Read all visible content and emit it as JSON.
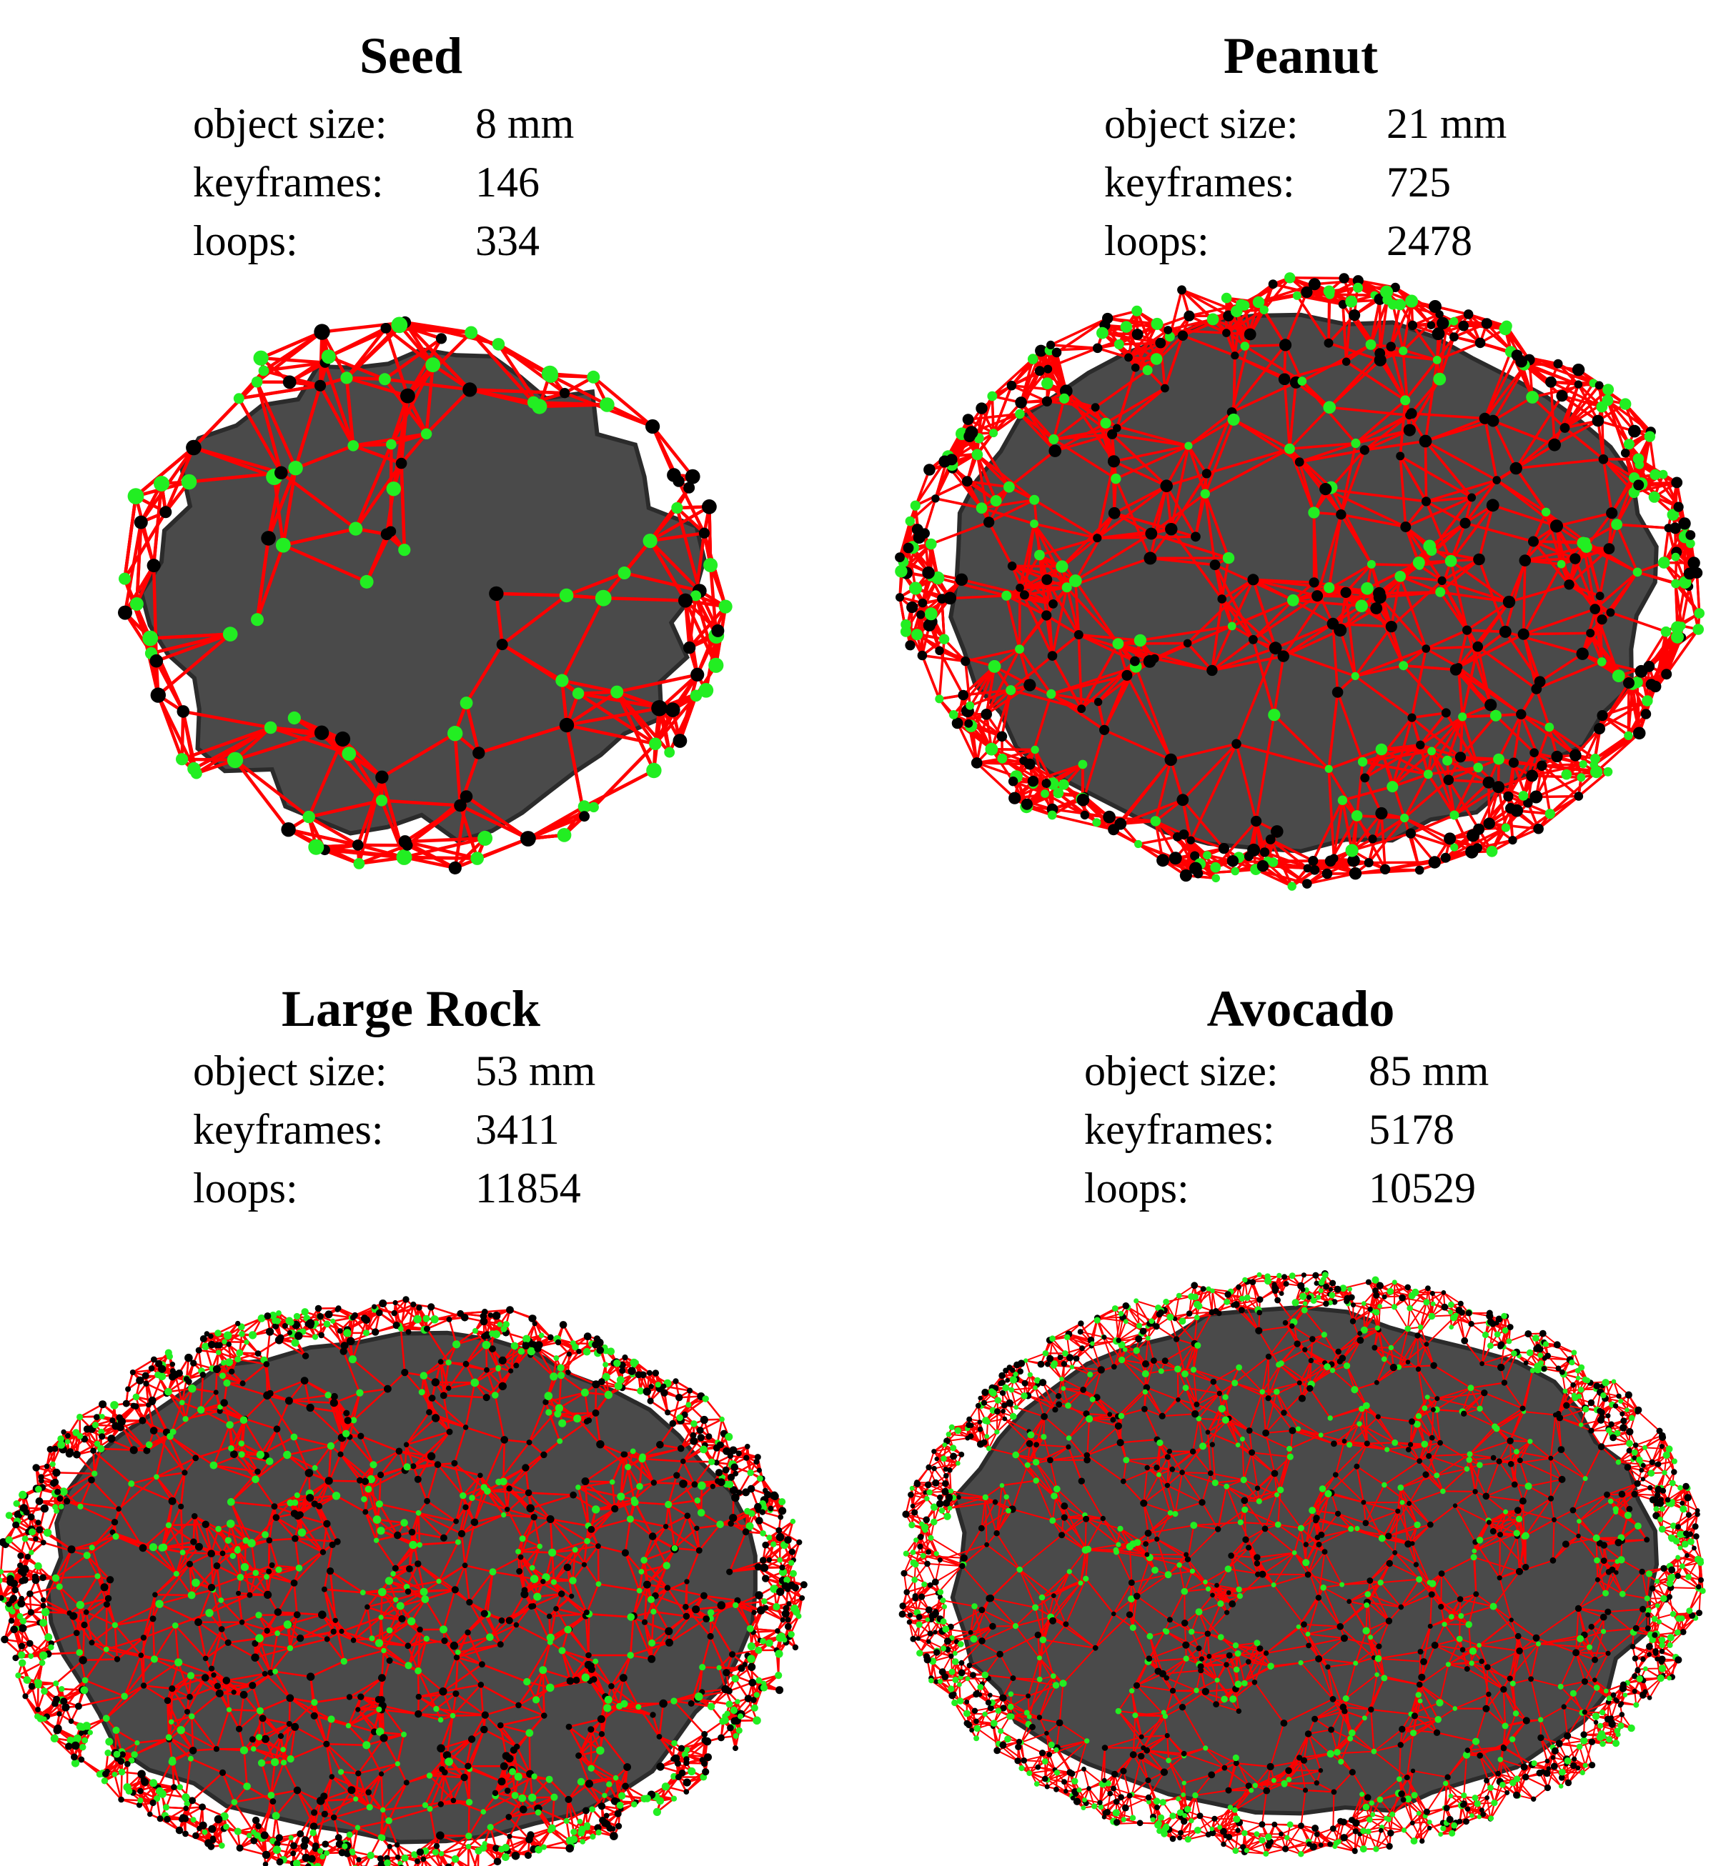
{
  "colors": {
    "object_surface": "#4a4a4a",
    "object_shadow": "#2b2b2b",
    "loop_edge": "#ff0000",
    "keyframe_node_green": "#22ee22",
    "keyframe_node_black": "#000000"
  },
  "panels": [
    {
      "id": "seed",
      "title": "Seed",
      "stats": [
        {
          "label": "object size:",
          "value": "8 mm"
        },
        {
          "label": "keyframes:",
          "value": "146"
        },
        {
          "label": "loops:",
          "value": "334"
        }
      ]
    },
    {
      "id": "peanut",
      "title": "Peanut",
      "stats": [
        {
          "label": "object size:",
          "value": "21 mm"
        },
        {
          "label": "keyframes:",
          "value": "725"
        },
        {
          "label": "loops:",
          "value": "2478"
        }
      ]
    },
    {
      "id": "large-rock",
      "title": "Large Rock",
      "stats": [
        {
          "label": "object size:",
          "value": "53 mm"
        },
        {
          "label": "keyframes:",
          "value": "3411"
        },
        {
          "label": "loops:",
          "value": "11854"
        }
      ]
    },
    {
      "id": "avocado",
      "title": "Avocado",
      "stats": [
        {
          "label": "object size:",
          "value": "85 mm"
        },
        {
          "label": "keyframes:",
          "value": "5178"
        },
        {
          "label": "loops:",
          "value": "10529"
        }
      ]
    }
  ]
}
